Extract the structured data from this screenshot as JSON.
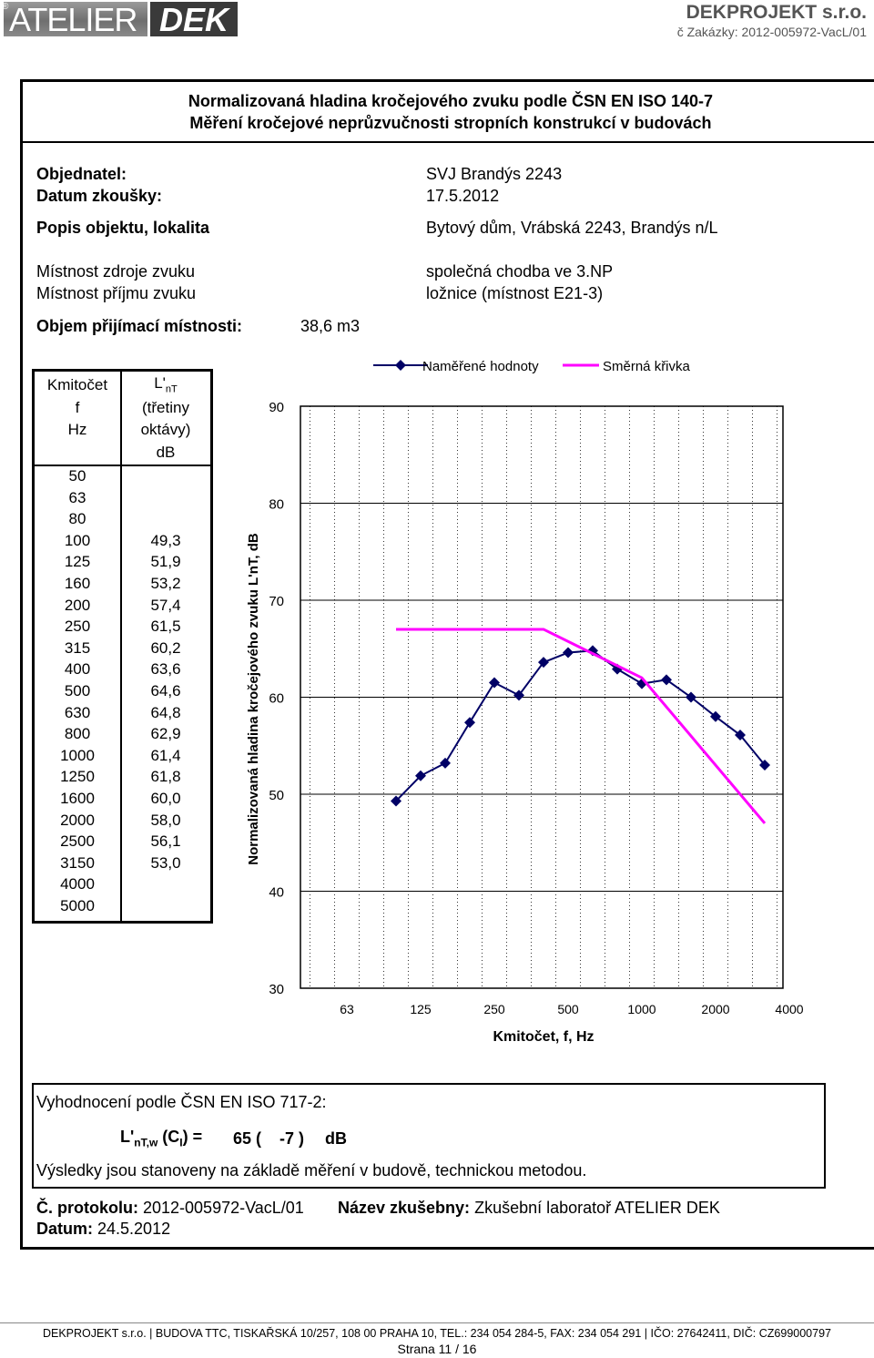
{
  "header": {
    "logo_left": "ATELIER",
    "logo_right": "DEK",
    "registered": "®",
    "company": "DEKPROJEKT s.r.o.",
    "order": "č Zakázky: 2012-005972-VacL/01"
  },
  "title": {
    "line1": "Normalizovaná hladina kročejového zvuku podle ČSN EN ISO 140-7",
    "line2": "Měření kročejové neprůzvučnosti stropních konstrukcí v budovách"
  },
  "info": {
    "client_label": "Objednatel:",
    "client_value": "SVJ Brandýs 2243",
    "date_label": "Datum zkoušky:",
    "date_value": "17.5.2012",
    "object_label": "Popis objektu, lokalita",
    "object_value": "Bytový dům, Vrábská 2243, Brandýs n/L",
    "source_label": "Místnost zdroje zvuku",
    "source_value": "společná chodba ve 3.NP",
    "receive_label": "Místnost příjmu zvuku",
    "receive_value": "ložnice (místnost E21-3)",
    "volume_label": "Objem přijímací místnosti:",
    "volume_value": "38,6 m3"
  },
  "table": {
    "h1": "Kmitočet",
    "h2": "f",
    "h3": "Hz",
    "h4": "L'",
    "h4_sub": "nT",
    "h5": "(třetiny",
    "h6": "oktávy)",
    "h7": "dB",
    "rows": [
      [
        "50",
        ""
      ],
      [
        "63",
        ""
      ],
      [
        "80",
        ""
      ],
      [
        "100",
        "49,3"
      ],
      [
        "125",
        "51,9"
      ],
      [
        "160",
        "53,2"
      ],
      [
        "200",
        "57,4"
      ],
      [
        "250",
        "61,5"
      ],
      [
        "315",
        "60,2"
      ],
      [
        "400",
        "63,6"
      ],
      [
        "500",
        "64,6"
      ],
      [
        "630",
        "64,8"
      ],
      [
        "800",
        "62,9"
      ],
      [
        "1000",
        "61,4"
      ],
      [
        "1250",
        "61,8"
      ],
      [
        "1600",
        "60,0"
      ],
      [
        "2000",
        "58,0"
      ],
      [
        "2500",
        "56,1"
      ],
      [
        "3150",
        "53,0"
      ],
      [
        "4000",
        ""
      ],
      [
        "5000",
        ""
      ]
    ]
  },
  "chart_data": {
    "type": "line",
    "xlabel": "Kmitočet, f, Hz",
    "ylabel": "Normalizovaná hladina kročejového zvuku L'nT, dB",
    "ylim": [
      30,
      90
    ],
    "yticks": [
      "90",
      "80",
      "70",
      "60",
      "50",
      "40",
      "30"
    ],
    "xtick_labels": [
      "63",
      "125",
      "250",
      "500",
      "1000",
      "2000",
      "4000"
    ],
    "x_scale": "log (1/3-octave bands)",
    "legend_position": "top",
    "grid": true,
    "series": [
      {
        "name": "Naměřené hodnoty",
        "color": "#000066",
        "marker": "diamond",
        "x": [
          100,
          125,
          160,
          200,
          250,
          315,
          400,
          500,
          630,
          800,
          1000,
          1250,
          1600,
          2000,
          2500,
          3150
        ],
        "values": [
          49.3,
          51.9,
          53.2,
          57.4,
          61.5,
          60.2,
          63.6,
          64.6,
          64.8,
          62.9,
          61.4,
          61.8,
          60.0,
          58.0,
          56.1,
          53.0
        ]
      },
      {
        "name": "Směrná křivka",
        "color": "#ff00ff",
        "marker": "none",
        "x": [
          100,
          400,
          1000,
          3150
        ],
        "values": [
          67,
          67,
          62,
          47
        ]
      }
    ]
  },
  "evaluation": {
    "heading": "Vyhodnocení podle ČSN EN ISO 717-2:",
    "rating_label": "L'",
    "rating_sub": "nT,w",
    "rating_ci": "(C",
    "rating_ci_sub": "I",
    "rating_ci_end": ") =",
    "rating_value": "65 (",
    "rating_ci_value": "-7 )",
    "rating_unit": "dB",
    "note": "Výsledky jsou stanoveny na základě měření v budově, technickou metodou.",
    "protocol_label": "Č. protokolu:",
    "protocol_value": "2012-005972-VacL/01",
    "lab_label": "Název zkušebny:",
    "lab_value": "Zkušební laboratoř ATELIER DEK",
    "date_label": "Datum:",
    "date_value": "24.5.2012"
  },
  "footer": {
    "address": "DEKPROJEKT s.r.o. | BUDOVA TTC, TISKAŘSKÁ 10/257, 108 00  PRAHA 10, TEL.: 234 054 284-5, FAX: 234 054 291 | IČO: 27642411, DIČ: CZ699000797",
    "page": "Strana 11 / 16"
  }
}
